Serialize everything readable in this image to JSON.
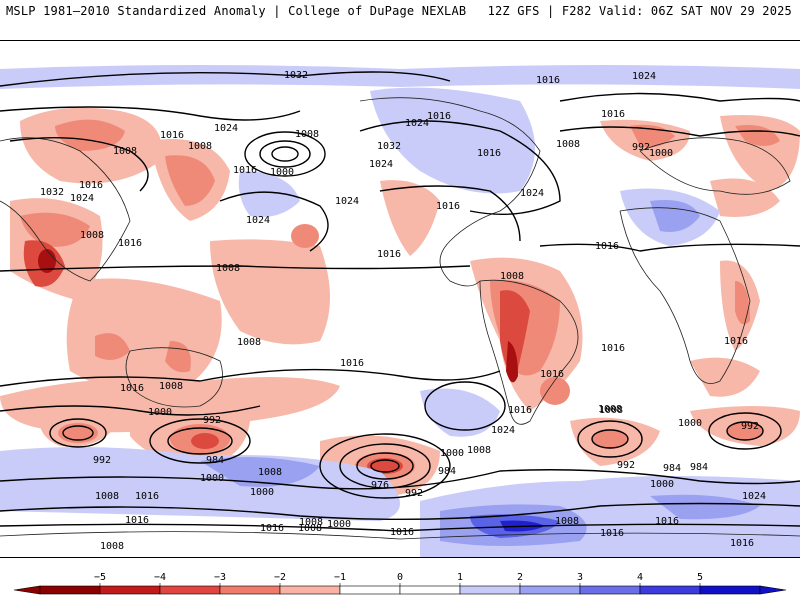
{
  "header": {
    "left_title": "MSLP 1981–2010 Standardized Anomaly | College of DuPage NEXLAB",
    "right_title": "12Z GFS | F282 Valid: 06Z SAT NOV 29 2025"
  },
  "map": {
    "product": "MSLP standardized anomaly",
    "isobar_labels": [
      "1032",
      "1016",
      "1024",
      "1016",
      "1008",
      "1008",
      "1016",
      "1024",
      "1008",
      "1032",
      "1024",
      "1016",
      "1016",
      "1008",
      "1000",
      "1024",
      "1032",
      "1016",
      "1024",
      "1016",
      "1024",
      "1008",
      "1016",
      "992",
      "1000",
      "1016",
      "1024",
      "1016",
      "1016",
      "1008",
      "1008",
      "1016",
      "1008",
      "1024",
      "1016",
      "1016",
      "1008",
      "1016",
      "1016",
      "1016",
      "1008",
      "1000",
      "992",
      "984",
      "992",
      "1008",
      "1000",
      "1000",
      "1008",
      "1016",
      "1016",
      "1024",
      "1008",
      "1000",
      "984",
      "992",
      "976",
      "1008",
      "984",
      "1008",
      "992",
      "1000",
      "992",
      "984",
      "1000",
      "1008",
      "1016",
      "1000",
      "1008",
      "1016",
      "1008",
      "1024",
      "1016",
      "1016",
      "1016"
    ]
  },
  "colorbar": {
    "ticks": [
      "−5",
      "−4",
      "−3",
      "−2",
      "−1",
      "0",
      "1",
      "2",
      "3",
      "4",
      "5"
    ],
    "colors": [
      "#8b0000",
      "#c31b1b",
      "#e0453f",
      "#f07b6b",
      "#f9b3a4",
      "#ffffff",
      "#ffffff",
      "#c8cbf8",
      "#9ba1f2",
      "#6a6ee8",
      "#3b3bde",
      "#1010c8"
    ]
  },
  "legend_colors": {
    "neg_light": "#f7b8a9",
    "neg_mid": "#f08a78",
    "neg_strong": "#dc4a3f",
    "neg_extreme": "#a80f10",
    "pos_light": "#c9ccf9",
    "pos_mid": "#9aa1f1",
    "pos_strong": "#5a62e6",
    "pos_extreme": "#2020cf"
  }
}
